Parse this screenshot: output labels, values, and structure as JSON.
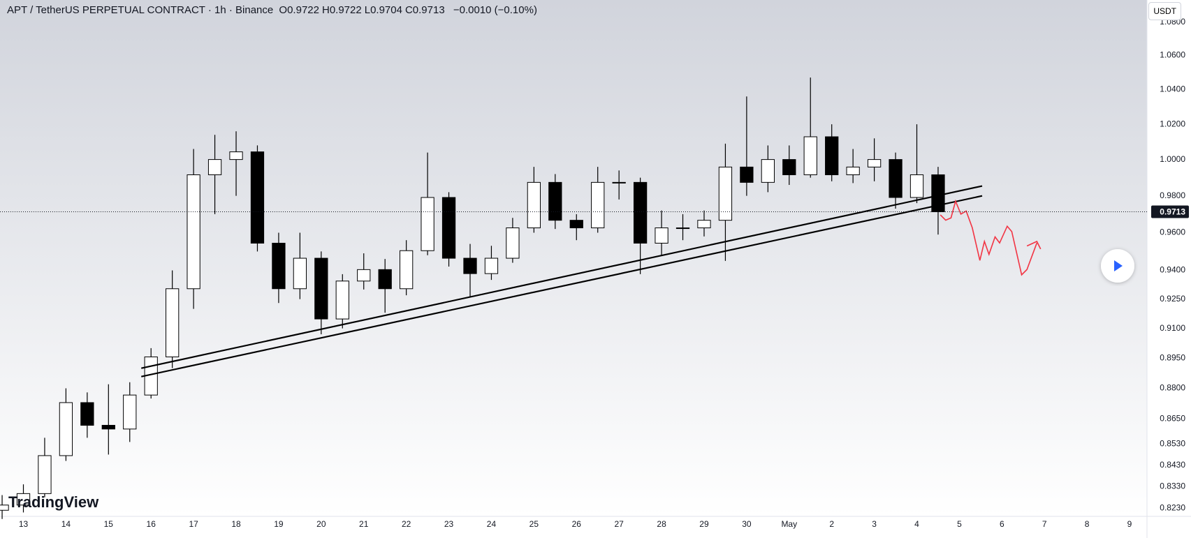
{
  "header": {
    "symbol": "APT / TetherUS PERPETUAL CONTRACT · 1h · Binance",
    "ohlc": [
      {
        "label": "O",
        "value": "0.9722"
      },
      {
        "label": "H",
        "value": "0.9722"
      },
      {
        "label": "L",
        "value": "0.9704"
      },
      {
        "label": "C",
        "value": "0.9713"
      }
    ],
    "change": "−0.0010 (−0.10%)"
  },
  "currency_button": "USDT",
  "logo": "TradingView",
  "chart_data": {
    "type": "candlestick",
    "log_scale": true,
    "grid": false,
    "up_color": "#ffffff",
    "down_color": "#000000",
    "x": [
      12.5,
      13,
      13.5,
      14,
      14.5,
      15,
      15.5,
      16,
      16.5,
      17,
      17.5,
      18,
      18.5,
      19,
      19.5,
      20,
      20.5,
      21,
      21.5,
      22,
      22.5,
      23,
      23.5,
      24,
      24.5,
      25,
      25.5,
      26,
      26.5,
      27,
      27.5,
      28,
      28.5,
      29,
      29.5,
      30,
      30.5,
      31,
      31.5,
      32,
      32.5,
      33,
      33.5,
      34,
      34.5
    ],
    "open": [
      0.822,
      0.8244,
      0.8297,
      0.8475,
      0.873,
      0.862,
      0.8602,
      0.8767,
      0.8956,
      0.9304,
      0.9916,
      1.0001,
      1.0044,
      0.9544,
      0.9304,
      0.9464,
      0.9148,
      0.9344,
      0.9404,
      0.9304,
      0.9504,
      0.9791,
      0.9464,
      0.9383,
      0.9464,
      0.9626,
      0.9874,
      0.9667,
      0.9626,
      0.9874,
      0.9874,
      0.9544,
      0.9626,
      0.9626,
      0.9667,
      0.9959,
      0.9874,
      1.0001,
      0.9916,
      1.0129,
      0.9916,
      0.9959,
      1.0001,
      0.9791,
      0.9916
    ],
    "high": [
      0.829,
      0.834,
      0.856,
      0.88,
      0.878,
      0.882,
      0.883,
      0.9,
      0.94,
      1.006,
      1.014,
      1.016,
      1.008,
      0.96,
      0.96,
      0.95,
      0.938,
      0.949,
      0.946,
      0.956,
      1.004,
      0.982,
      0.954,
      0.953,
      0.968,
      0.996,
      0.992,
      0.97,
      0.996,
      0.994,
      0.99,
      0.972,
      0.97,
      0.972,
      1.009,
      1.036,
      1.008,
      1.008,
      1.047,
      1.02,
      1.006,
      1.012,
      1.004,
      1.02,
      0.996
    ],
    "low": [
      0.818,
      0.821,
      0.828,
      0.845,
      0.856,
      0.848,
      0.854,
      0.875,
      0.89,
      0.92,
      0.97,
      0.98,
      0.95,
      0.923,
      0.925,
      0.907,
      0.91,
      0.93,
      0.918,
      0.927,
      0.948,
      0.942,
      0.926,
      0.935,
      0.944,
      0.96,
      0.962,
      0.956,
      0.96,
      0.978,
      0.938,
      0.948,
      0.956,
      0.958,
      0.945,
      0.98,
      0.982,
      0.986,
      0.99,
      0.988,
      0.987,
      0.988,
      0.973,
      0.976,
      0.959
    ],
    "close": [
      0.8244,
      0.8297,
      0.8475,
      0.873,
      0.862,
      0.8602,
      0.8767,
      0.8956,
      0.9304,
      0.9916,
      1.0001,
      1.0044,
      0.9544,
      0.9304,
      0.9464,
      0.9148,
      0.9344,
      0.9404,
      0.9304,
      0.9504,
      0.9791,
      0.9464,
      0.9383,
      0.9464,
      0.9626,
      0.9874,
      0.9667,
      0.9626,
      0.9874,
      0.9874,
      0.9544,
      0.9626,
      0.9626,
      0.9667,
      0.9959,
      0.9874,
      1.0001,
      0.9916,
      1.0129,
      0.9916,
      0.9959,
      1.0001,
      0.9791,
      0.9916,
      0.9713
    ],
    "last_price": 0.9713,
    "xlim": [
      12.45,
      39.41
    ],
    "xticks": [
      13,
      14,
      15,
      16,
      17,
      18,
      19,
      20,
      21,
      22,
      23,
      24,
      25,
      26,
      27,
      28,
      29,
      30,
      {
        "value": 31,
        "label": "May"
      },
      {
        "value": 32,
        "label": "2"
      },
      {
        "value": 33,
        "label": "3"
      },
      {
        "value": 34,
        "label": "4"
      },
      {
        "value": 35,
        "label": "5"
      },
      {
        "value": 36,
        "label": "6"
      },
      {
        "value": 37,
        "label": "7"
      },
      {
        "value": 38,
        "label": "8"
      },
      {
        "value": 39,
        "label": "9"
      }
    ],
    "ylim": [
      0.8192,
      1.0934
    ],
    "yticks": [
      {
        "value": 1.08,
        "label": "1.0800"
      },
      {
        "value": 1.06,
        "label": "1.0600"
      },
      {
        "value": 1.04,
        "label": "1.0400"
      },
      {
        "value": 1.02,
        "label": "1.0200"
      },
      {
        "value": 1.0,
        "label": "1.0000"
      },
      {
        "value": 0.98,
        "label": "0.9800"
      },
      {
        "value": 0.96,
        "label": "0.9600"
      },
      {
        "value": 0.94,
        "label": "0.9400"
      },
      {
        "value": 0.925,
        "label": "0.9250"
      },
      {
        "value": 0.91,
        "label": "0.9100"
      },
      {
        "value": 0.895,
        "label": "0.8950"
      },
      {
        "value": 0.88,
        "label": "0.8800"
      },
      {
        "value": 0.865,
        "label": "0.8650"
      },
      {
        "value": 0.853,
        "label": "0.8530"
      },
      {
        "value": 0.843,
        "label": "0.8430"
      },
      {
        "value": 0.833,
        "label": "0.8330"
      },
      {
        "value": 0.823,
        "label": "0.8230"
      }
    ]
  }
}
